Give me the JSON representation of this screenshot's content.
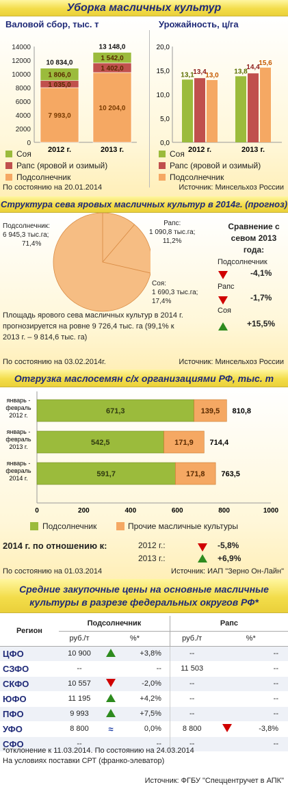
{
  "section1": {
    "banner": "Уборка масличных культур",
    "left_title": "Валовой сбор, тыс. т",
    "right_title": "Урожайность, ц/га",
    "footnote": "По состоянию на 20.01.2014",
    "source": "Источник: Минсельхоз России",
    "legend": [
      "Соя",
      "Рапс (яровой и озимый)",
      "Подсолнечник"
    ]
  },
  "section2": {
    "banner": "Структура сева яровых масличных культур в 2014г. (прогноз)",
    "label_sunflower": [
      "Подсолнечник:",
      "6 945,3 тыс.га;",
      "71,4%"
    ],
    "label_rapeseed": [
      "Рапс:",
      "1 090,8 тыс.га;",
      "11,2%"
    ],
    "label_soy": [
      "Соя:",
      "1 690,3 тыс.га;",
      "17,4%"
    ],
    "compare_title": [
      "Сравнение с",
      "севом 2013",
      "года:"
    ],
    "compare": [
      {
        "name": "Подсолнечник",
        "value": "-4,1%",
        "dir": "down"
      },
      {
        "name": "Рапс",
        "value": "-1,7%",
        "dir": "down"
      },
      {
        "name": "Соя",
        "value": "+15,5%",
        "dir": "up"
      }
    ],
    "text": [
      "Площадь ярового сева масличных культур в 2014 г.",
      "прогнозируется на ровне 9 726,4 тыс. га (99,1% к",
      "2013 г. – 9 814,6 тыс. га)"
    ],
    "footnote": "По состоянию на 03.02.2014г.",
    "source": "Источник: Минсельхоз России"
  },
  "section3": {
    "banner": "Отгрузка маслосемян с/х организациями РФ, тыс. т",
    "row_labels": [
      [
        "январь -",
        "февраль",
        "2012 г."
      ],
      [
        "январь -",
        "февраль",
        "2013 г."
      ],
      [
        "январь -",
        "февраль",
        "2014 г."
      ]
    ],
    "legend": [
      "Подсолнечник",
      "Прочие масличные культуры"
    ],
    "compare_title": "2014 г. по отношению к:",
    "compare": [
      {
        "name": "2012 г.:",
        "value": "-5,8%",
        "dir": "down"
      },
      {
        "name": "2013 г.:",
        "value": "+6,9%",
        "dir": "up"
      }
    ],
    "footnote": "По состоянию на 01.03.2014",
    "source": "Источник: ИАП \"Зерно Он-Лайн\""
  },
  "section4": {
    "banner_line1": "Средние закупочные цены на основные масличные",
    "banner_line2": "культуры в разрезе федеральных округов РФ*",
    "h_region": "Регион",
    "h_sunflower": "Подсолнечник",
    "h_rapeseed": "Рапс",
    "h_rub": "руб./т",
    "h_pct": "%*",
    "rows": [
      {
        "region": "ЦФО",
        "s_price": "10 900",
        "s_dir": "up",
        "s_pct": "+3,8%",
        "r_price": "--",
        "r_dir": "",
        "r_pct": "--"
      },
      {
        "region": "СЗФО",
        "s_price": "--",
        "s_dir": "",
        "s_pct": "--",
        "r_price": "11 503",
        "r_dir": "",
        "r_pct": "--"
      },
      {
        "region": "СКФО",
        "s_price": "10 557",
        "s_dir": "down",
        "s_pct": "-2,0%",
        "r_price": "--",
        "r_dir": "",
        "r_pct": "--"
      },
      {
        "region": "ЮФО",
        "s_price": "11 195",
        "s_dir": "up",
        "s_pct": "+4,2%",
        "r_price": "--",
        "r_dir": "",
        "r_pct": "--"
      },
      {
        "region": "ПФО",
        "s_price": "9 993",
        "s_dir": "up",
        "s_pct": "+7,5%",
        "r_price": "--",
        "r_dir": "",
        "r_pct": "--"
      },
      {
        "region": "УФО",
        "s_price": "8 800",
        "s_dir": "eq",
        "s_pct": "0,0%",
        "r_price": "8 800",
        "r_dir": "down",
        "r_pct": "-3,8%"
      },
      {
        "region": "СФО",
        "s_price": "--",
        "s_dir": "",
        "s_pct": "--",
        "r_price": "--",
        "r_dir": "",
        "r_pct": "--"
      }
    ],
    "note1": "*отклонение к 11.03.2014. По состоянию на 24.03.2014",
    "note2": "На условиях поставки СРТ (франко-элеватор)",
    "source": "Источник: ФГБУ \"Спеццентручет в АПК\""
  },
  "colors": {
    "soy": "#9bbb3c",
    "rapeseed": "#c0504d",
    "sunflower": "#f5a863",
    "banner_text": "#1f2a78",
    "up": "#2e8b1e",
    "down": "#d00000"
  },
  "chart_data": [
    {
      "type": "bar",
      "stacked": true,
      "title": "Валовой сбор, тыс. т",
      "categories": [
        "2012 г.",
        "2013 г."
      ],
      "series": [
        {
          "name": "Подсолнечник",
          "values": [
            7993.0,
            10204.0
          ]
        },
        {
          "name": "Рапс (яровой и озимый)",
          "values": [
            1035.0,
            1402.0
          ]
        },
        {
          "name": "Соя",
          "values": [
            1806.0,
            1542.0
          ]
        }
      ],
      "totals": [
        10834.0,
        13148.0
      ],
      "ylim": [
        0,
        14000
      ],
      "yticks": [
        0,
        2000,
        4000,
        6000,
        8000,
        10000,
        12000,
        14000
      ],
      "labels": {
        "values": [
          [
            "7 993,0",
            "1 035,0",
            "1 806,0"
          ],
          [
            "10 204,0",
            "1 402,0",
            "1 542,0"
          ]
        ],
        "totals": [
          "10 834,0",
          "13 148,0"
        ]
      }
    },
    {
      "type": "bar",
      "title": "Урожайность, ц/га",
      "categories": [
        "2012 г.",
        "2013 г."
      ],
      "series": [
        {
          "name": "Соя",
          "values": [
            13.1,
            13.8
          ]
        },
        {
          "name": "Рапс (яровой и озимый)",
          "values": [
            13.4,
            14.4
          ]
        },
        {
          "name": "Подсолнечник",
          "values": [
            13.0,
            15.6
          ]
        }
      ],
      "ylim": [
        0,
        20
      ],
      "yticks": [
        "0,0",
        "5,0",
        "10,0",
        "15,0",
        "20,0"
      ],
      "labels": [
        [
          "13,1",
          "13,4",
          "13,0"
        ],
        [
          "13,8",
          "14,4",
          "15,6"
        ]
      ]
    },
    {
      "type": "pie",
      "title": "Структура сева яровых масличных культур в 2014г. (прогноз)",
      "slices": [
        {
          "name": "Подсолнечник",
          "value": 6945.3,
          "percent": 71.4
        },
        {
          "name": "Рапс",
          "value": 1090.8,
          "percent": 11.2
        },
        {
          "name": "Соя",
          "value": 1690.3,
          "percent": 17.4
        }
      ]
    },
    {
      "type": "bar",
      "orientation": "horizontal",
      "stacked": true,
      "title": "Отгрузка маслосемян с/х организациями РФ, тыс. т",
      "categories": [
        "январь - февраль 2012 г.",
        "январь - февраль 2013 г.",
        "январь - февраль 2014 г."
      ],
      "series": [
        {
          "name": "Подсолнечник",
          "values": [
            671.3,
            542.5,
            591.7
          ]
        },
        {
          "name": "Прочие масличные культуры",
          "values": [
            139.5,
            171.9,
            171.8
          ]
        }
      ],
      "totals": [
        810.8,
        714.4,
        763.5
      ],
      "xlim": [
        0,
        1000
      ],
      "xticks": [
        0,
        200,
        400,
        600,
        800,
        1000
      ],
      "labels": {
        "sunflower": [
          "671,3",
          "542,5",
          "591,7"
        ],
        "other": [
          "139,5",
          "171,9",
          "171,8"
        ],
        "totals": [
          "810,8",
          "714,4",
          "763,5"
        ]
      }
    }
  ]
}
